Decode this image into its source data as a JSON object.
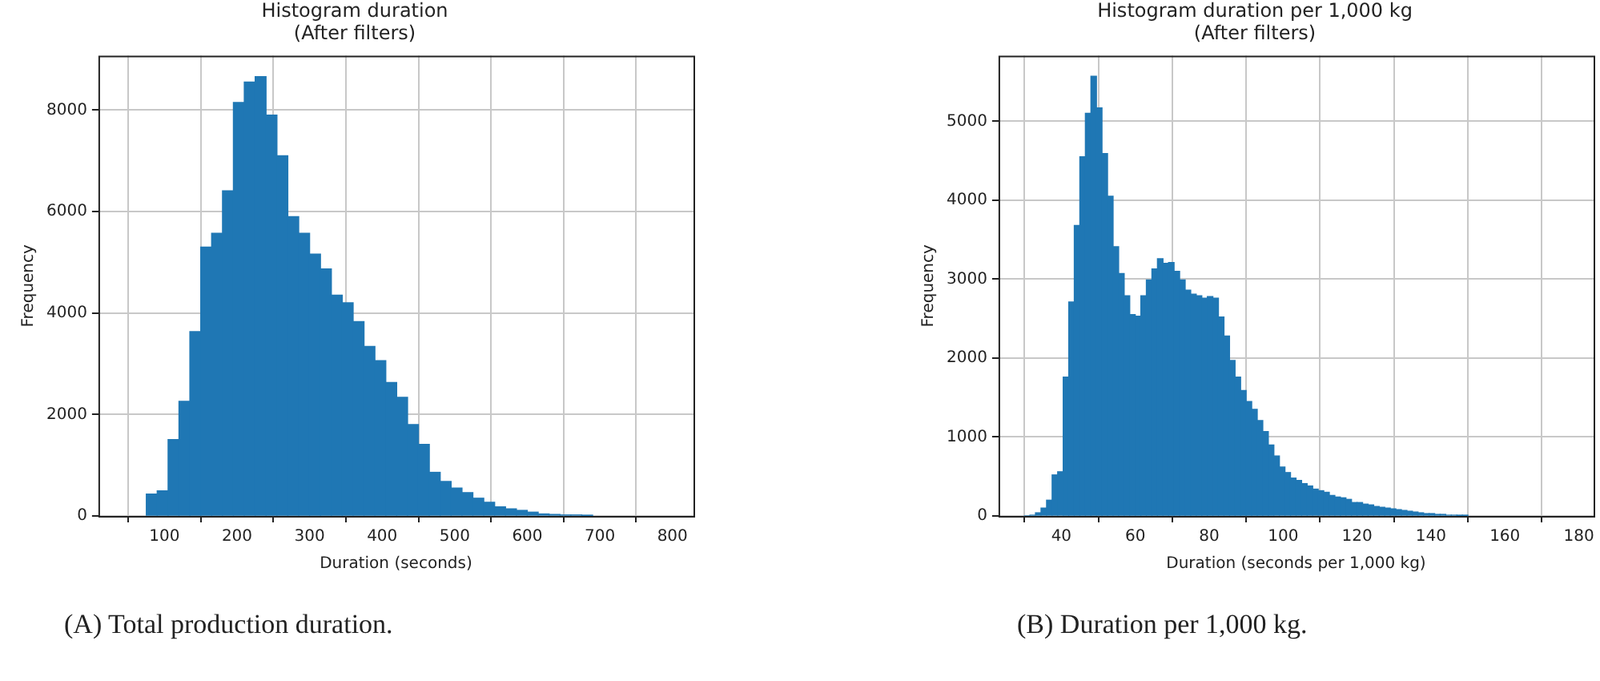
{
  "chart_data": [
    {
      "type": "histogram",
      "title": "Histogram duration\n(After filters)",
      "xlabel": "Duration (seconds)",
      "ylabel": "Frequency",
      "color": "#1f77b4",
      "bins": [
        75,
        90,
        105,
        120,
        135,
        150,
        165,
        180,
        195,
        210,
        225,
        240,
        255,
        270,
        285,
        300,
        315,
        330,
        345,
        360,
        375,
        390,
        405,
        420,
        435,
        450,
        465,
        480,
        495,
        510,
        525,
        540,
        555,
        570,
        585,
        600,
        615,
        630,
        645,
        660,
        675,
        690
      ],
      "values": [
        430,
        495,
        1505,
        2258,
        3634,
        5300,
        5570,
        6409,
        8150,
        8550,
        8660,
        7900,
        7100,
        5900,
        5570,
        5160,
        4870,
        4350,
        4200,
        3830,
        3340,
        3060,
        2630,
        2340,
        1800,
        1410,
        860,
        680,
        550,
        460,
        350,
        270,
        180,
        140,
        110,
        75,
        40,
        30,
        20,
        20,
        10
      ],
      "xlim": [
        9,
        829
      ],
      "xticks": [
        100,
        200,
        300,
        400,
        500,
        600,
        700,
        800
      ],
      "ylim": [
        0,
        9070
      ],
      "yticks": [
        0,
        2000,
        4000,
        6000,
        8000
      ],
      "grid": true,
      "annotations": [
        "(A) Total production duration."
      ]
    },
    {
      "type": "histogram",
      "title": "Histogram duration per 1,000 kg\n(After filters)",
      "xlabel": "Duration (seconds per 1,000 kg)",
      "ylabel": "Frequency",
      "color": "#1f77b4",
      "bins": [
        30,
        31.5,
        33,
        34.5,
        36,
        37.5,
        39,
        40.5,
        42,
        43.5,
        45,
        46.5,
        48,
        49.5,
        51,
        52.5,
        54,
        55.5,
        57,
        58.5,
        60,
        61.5,
        63,
        64.5,
        66,
        67.5,
        69,
        70.5,
        72,
        73.5,
        75,
        76.5,
        78,
        79.5,
        81,
        82.5,
        84,
        85.5,
        87,
        88.5,
        90,
        91.5,
        93,
        94.5,
        96,
        97.5,
        99,
        100.5,
        102,
        103.5,
        105,
        106.5,
        108,
        109.5,
        111,
        112.5,
        114,
        115.5,
        117,
        118.5,
        120,
        121.5,
        123,
        124.5,
        126,
        127.5,
        129,
        130.5,
        132,
        133.5,
        135,
        136.5,
        138,
        139.5,
        141,
        142.5,
        144,
        145.5,
        147,
        148.5,
        150
      ],
      "values": [
        0,
        10,
        40,
        100,
        200,
        520,
        560,
        1760,
        2710,
        3680,
        4550,
        5100,
        5570,
        5170,
        4590,
        4050,
        3410,
        3070,
        2790,
        2550,
        2530,
        2790,
        2990,
        3130,
        3260,
        3200,
        3210,
        3100,
        2990,
        2860,
        2810,
        2790,
        2760,
        2780,
        2760,
        2520,
        2280,
        1970,
        1760,
        1590,
        1450,
        1350,
        1210,
        1070,
        900,
        760,
        620,
        550,
        480,
        450,
        410,
        380,
        340,
        320,
        300,
        260,
        240,
        230,
        210,
        170,
        170,
        150,
        140,
        120,
        110,
        100,
        90,
        80,
        70,
        60,
        50,
        40,
        30,
        30,
        20,
        20,
        10,
        10,
        5,
        5
      ],
      "xlim": [
        23,
        184
      ],
      "xticks": [
        40,
        60,
        80,
        100,
        120,
        140,
        160,
        180
      ],
      "ylim": [
        0,
        5830
      ],
      "yticks": [
        0,
        1000,
        2000,
        3000,
        4000,
        5000
      ],
      "grid": true,
      "annotations": [
        "(B) Duration per 1,000 kg."
      ]
    }
  ]
}
